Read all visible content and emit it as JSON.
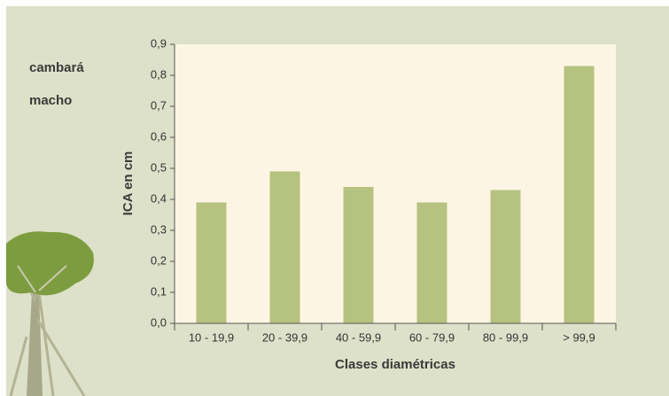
{
  "chart_data": {
    "type": "bar",
    "annotation_lines": [
      "cambará",
      "macho"
    ],
    "x_label": "Clases diamétricas",
    "y_label": "ICA en cm",
    "categories": [
      "10 - 19,9",
      "20 - 39,9",
      "40 - 59,9",
      "60 - 79,9",
      "80 - 99,9",
      "> 99,9"
    ],
    "values": [
      0.39,
      0.49,
      0.44,
      0.39,
      0.43,
      0.83
    ],
    "color": "#b6c27f",
    "ylim": [
      0,
      0.9
    ],
    "yticks": [
      {
        "value": 0,
        "label": "0,0"
      },
      {
        "value": 0.1,
        "label": "0,1"
      },
      {
        "value": 0.2,
        "label": "0,2"
      },
      {
        "value": 0.3,
        "label": "0,3"
      },
      {
        "value": 0.4,
        "label": "0,4"
      },
      {
        "value": 0.5,
        "label": "0,5"
      },
      {
        "value": 0.6,
        "label": "0,6"
      },
      {
        "value": 0.7,
        "label": "0,7"
      },
      {
        "value": 0.8,
        "label": "0,8"
      },
      {
        "value": 0.9,
        "label": "0,9"
      }
    ]
  }
}
